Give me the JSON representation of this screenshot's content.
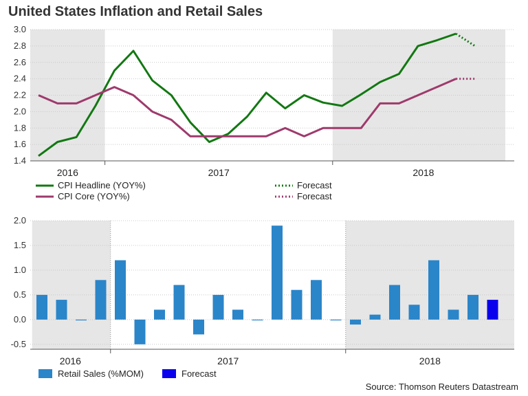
{
  "title": "United States Inflation and Retail Sales",
  "source": "Source: Thomson Reuters Datastream",
  "colors": {
    "headline": "#127812",
    "core": "#9e3a6c",
    "retail": "#2b85c9",
    "retail_forecast": "#0a00ee",
    "shade": "#e6e6e6",
    "grid": "#c8c8c8"
  },
  "chart_data": [
    {
      "type": "line",
      "title": "CPI",
      "ylim": [
        1.4,
        3.0
      ],
      "yticks": [
        "3.0",
        "2.8",
        "2.6",
        "2.4",
        "2.2",
        "2.0",
        "1.8",
        "1.6",
        "1.4"
      ],
      "year_labels": [
        "2016",
        "2017",
        "2018"
      ],
      "x_range": [
        0,
        25
      ],
      "shaded_x_ranges": [
        [
          -0.6,
          3.5
        ],
        [
          15.5,
          24.6
        ]
      ],
      "series": [
        {
          "name": "CPI Headline (YOY%)",
          "x": [
            0,
            1,
            2,
            3,
            4,
            5,
            6,
            7,
            8,
            9,
            10,
            11,
            12,
            13,
            14,
            15,
            16,
            17,
            18,
            19,
            20,
            21,
            22
          ],
          "values": [
            1.46,
            1.63,
            1.69,
            2.07,
            2.5,
            2.74,
            2.38,
            2.2,
            1.87,
            1.63,
            1.73,
            1.94,
            2.23,
            2.04,
            2.2,
            2.11,
            2.07,
            2.21,
            2.36,
            2.46,
            2.8,
            2.87,
            2.95
          ]
        },
        {
          "name": "CPI Core (YOY%)",
          "x": [
            0,
            1,
            2,
            3,
            4,
            5,
            6,
            7,
            8,
            9,
            10,
            11,
            12,
            13,
            14,
            15,
            16,
            17,
            18,
            19,
            20,
            21,
            22
          ],
          "values": [
            2.2,
            2.1,
            2.1,
            2.2,
            2.3,
            2.2,
            2.0,
            1.9,
            1.7,
            1.7,
            1.7,
            1.7,
            1.7,
            1.8,
            1.7,
            1.8,
            1.8,
            1.8,
            2.1,
            2.1,
            2.2,
            2.3,
            2.4
          ]
        },
        {
          "name": "Forecast",
          "x": [
            22,
            23
          ],
          "values": [
            2.95,
            2.8
          ]
        },
        {
          "name": "Forecast",
          "x": [
            22,
            23
          ],
          "values": [
            2.4,
            2.4
          ]
        }
      ],
      "legend": [
        {
          "label": "CPI Headline (YOY%)",
          "color": "headline",
          "dotted": false
        },
        {
          "label": "Forecast",
          "color": "headline",
          "dotted": true
        },
        {
          "label": "CPI Core (YOY%)",
          "color": "core",
          "dotted": false
        },
        {
          "label": "Forecast",
          "color": "core",
          "dotted": true
        }
      ]
    },
    {
      "type": "bar",
      "title": "Retail Sales",
      "ylim": [
        -0.6,
        2.0
      ],
      "yticks": [
        "2.0",
        "1.5",
        "1.0",
        "0.5",
        "0.0",
        "-0.5"
      ],
      "year_labels": [
        "2016",
        "2017",
        "2018"
      ],
      "x_range": [
        0,
        24
      ],
      "shaded_x_ranges": [
        [
          -0.5,
          3.5
        ],
        [
          15.5,
          24.4
        ]
      ],
      "values": [
        0.5,
        0.4,
        0.0,
        0.8,
        1.2,
        -0.5,
        0.2,
        0.7,
        -0.3,
        0.5,
        0.2,
        0.0,
        1.9,
        0.6,
        0.8,
        0.0,
        -0.1,
        0.1,
        0.7,
        0.3,
        1.2,
        0.2,
        0.5,
        0.4
      ],
      "forecast_index": 23,
      "legend": [
        {
          "label": "Retail Sales (%MOM)",
          "color": "retail"
        },
        {
          "label": "Forecast",
          "color": "retail_forecast"
        }
      ]
    }
  ]
}
